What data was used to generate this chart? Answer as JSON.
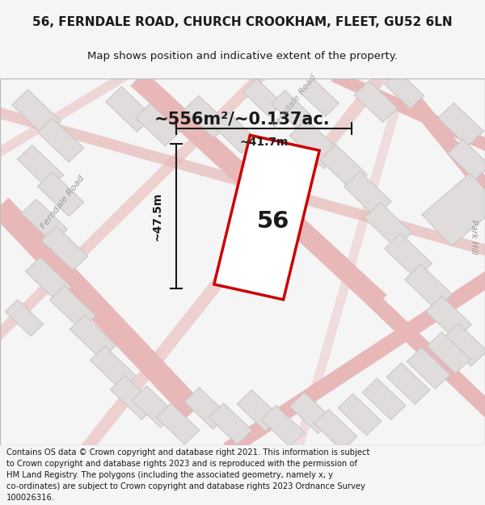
{
  "title_line1": "56, FERNDALE ROAD, CHURCH CROOKHAM, FLEET, GU52 6LN",
  "title_line2": "Map shows position and indicative extent of the property.",
  "area_text": "~556m²/~0.137ac.",
  "label_56": "56",
  "dim_vertical": "~47.5m",
  "dim_horizontal": "~41.7m",
  "footnote_lines": [
    "Contains OS data © Crown copyright and database right 2021. This information is subject",
    "to Crown copyright and database rights 2023 and is reproduced with the permission of",
    "HM Land Registry. The polygons (including the associated geometry, namely x, y",
    "co-ordinates) are subject to Crown copyright and database rights 2023 Ordnance Survey",
    "100026316."
  ],
  "bg_color": "#f5f5f5",
  "map_bg": "#f0eeee",
  "road_color_light": "#e8b8b8",
  "road_color_gray": "#d0cece",
  "building_fill": "#e0dcdc",
  "building_edge": "#c8c4c4",
  "property_color": "#cc0000",
  "property_fill": "#ffffff",
  "dim_line_color": "#1a1a1a",
  "title_color": "#1a1a1a",
  "road_label_color": "#999999"
}
